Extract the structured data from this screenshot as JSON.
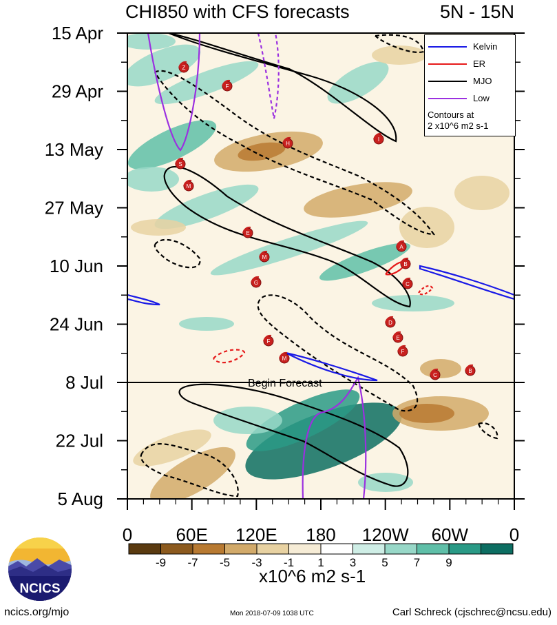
{
  "title_left": "CHI850 with CFS forecasts",
  "title_right": "5N - 15N",
  "y_tick_labels": [
    "15 Apr",
    "29 Apr",
    "13 May",
    "27 May",
    "10 Jun",
    "24 Jun",
    "8 Jul",
    "22 Jul",
    "5 Aug"
  ],
  "x_tick_labels": [
    "0",
    "60E",
    "120E",
    "180",
    "120W",
    "60W",
    "0"
  ],
  "forecast_label": "Begin Forecast",
  "legend": {
    "items": [
      {
        "label": "Kelvin",
        "color": "#1a1ae6"
      },
      {
        "label": "ER",
        "color": "#e61a1a"
      },
      {
        "label": "MJO",
        "color": "#000000"
      },
      {
        "label": "Low",
        "color": "#9b30e0"
      }
    ],
    "note_line1": "Contours at",
    "note_line2": "2 x10^6 m2 s-1"
  },
  "colorbar": {
    "tick_labels": [
      "-9",
      "-7",
      "-5",
      "-3",
      "-1",
      "1",
      "3",
      "5",
      "7",
      "9"
    ],
    "colors": [
      "#5a3a10",
      "#8c5a1e",
      "#b87a32",
      "#d2aa6a",
      "#e8d2a2",
      "#f6ecd6",
      "#ffffff",
      "#cfeee6",
      "#98d8c8",
      "#5fbfa8",
      "#2a9a86",
      "#0d6e62"
    ],
    "units": "x10^6 m2 s-1"
  },
  "logo_text": "NCICS",
  "footer": {
    "left": "ncics.org/mjo",
    "middle": "Mon 2018-07-09 1038 UTC",
    "right": "Carl Schreck (cjschrec@ncsu.edu)"
  },
  "chart_data": {
    "type": "heatmap",
    "title": "CHI850 with CFS forecasts",
    "latitude_band": "5N - 15N",
    "x_axis": {
      "range": [
        0,
        360
      ],
      "tick_labels": [
        "0",
        "60E",
        "120E",
        "180",
        "120W",
        "60W",
        "0"
      ]
    },
    "y_axis": {
      "range": [
        "15 Apr",
        "5 Aug"
      ],
      "tick_labels": [
        "15 Apr",
        "29 Apr",
        "13 May",
        "27 May",
        "10 Jun",
        "24 Jun",
        "8 Jul",
        "22 Jul",
        "5 Aug"
      ]
    },
    "shading_levels": [
      -9,
      -7,
      -5,
      -3,
      -1,
      1,
      3,
      5,
      7,
      9
    ],
    "shading_units": "x10^6 m2 s-1",
    "contour_interval": "2 x10^6 m2 s-1",
    "forecast_start": "8 Jul",
    "series": [
      {
        "name": "Kelvin",
        "color": "#1a1ae6"
      },
      {
        "name": "ER",
        "color": "#e61a1a"
      },
      {
        "name": "MJO",
        "color": "#000000"
      },
      {
        "name": "Low",
        "color": "#9b30e0"
      }
    ],
    "storm_markers": [
      "Z",
      "F",
      "H",
      "I",
      "S",
      "M",
      "E",
      "A",
      "M",
      "B",
      "G",
      "C",
      "D",
      "E",
      "F",
      "F",
      "M",
      "B",
      "C"
    ],
    "legend_position": "top-right"
  }
}
